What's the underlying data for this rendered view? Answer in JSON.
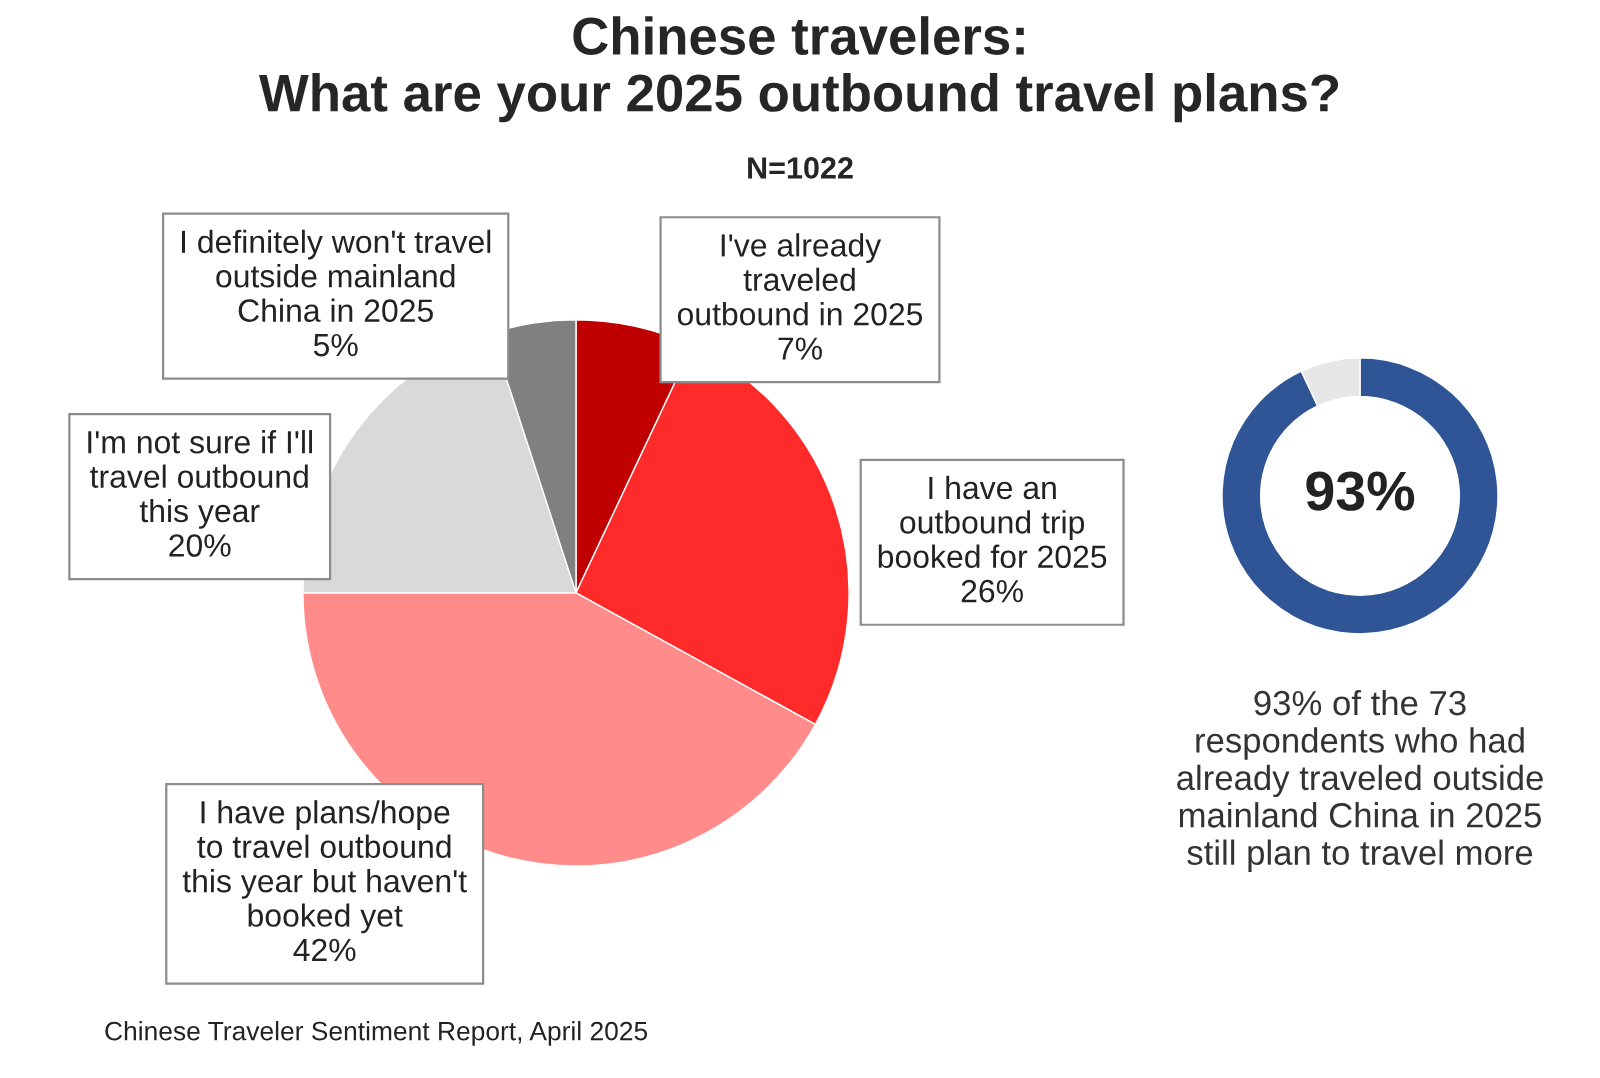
{
  "chart_data": [
    {
      "type": "pie",
      "title": "Chinese travelers:\nWhat are your 2025 outbound travel plans?",
      "subtitle": "N=1022",
      "categories": [
        "I've already\ntraveled\noutbound in 2025",
        "I have an\noutbound trip\nbooked for 2025",
        "I have plans/hope\nto travel outbound\nthis year but haven't\nbooked yet",
        "I'm not sure if I'll\ntravel outbound\nthis year",
        "I definitely won't travel\noutside mainland\nChina in 2025"
      ],
      "values": [
        7,
        26,
        42,
        20,
        5
      ],
      "colors": [
        "#c00000",
        "#ff2b2b",
        "#ff8b8b",
        "#d9d9d9",
        "#808080"
      ],
      "value_labels": [
        "7%",
        "26%",
        "42%",
        "20%",
        "5%"
      ],
      "annotations": [
        "Chinese Traveler Sentiment Report, April 2025"
      ]
    },
    {
      "type": "donut",
      "categories": [
        null,
        null
      ],
      "values": [
        93,
        7
      ],
      "colors": [
        "#2f5597",
        "#e7e6e6"
      ],
      "value_labels": [
        "93%",
        null
      ],
      "annotations": [
        "93% of the 73\nrespondents who had\nalready traveled outside\nmainland China in 2025\nstill plan to travel more"
      ]
    }
  ]
}
